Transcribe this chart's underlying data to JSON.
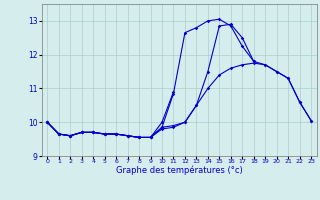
{
  "xlabel": "Graphe des températures (°c)",
  "background_color": "#d6eded",
  "grid_color": "#aacccc",
  "line_color": "#0000cc",
  "hours": [
    0,
    1,
    2,
    3,
    4,
    5,
    6,
    7,
    8,
    9,
    10,
    11,
    12,
    13,
    14,
    15,
    16,
    17,
    18,
    19,
    20,
    21,
    22,
    23
  ],
  "series": [
    {
      "name": "line_straight_long",
      "x": [
        0,
        1,
        2,
        3,
        4,
        5,
        6,
        7,
        8,
        9,
        10,
        11,
        12,
        13,
        14,
        15,
        16,
        17,
        18,
        19,
        20,
        21,
        22,
        23
      ],
      "y": [
        10.0,
        9.65,
        9.6,
        9.7,
        9.7,
        9.65,
        9.65,
        9.6,
        9.55,
        9.55,
        9.8,
        9.85,
        10.0,
        10.5,
        11.0,
        11.4,
        11.6,
        11.7,
        11.75,
        11.7,
        11.5,
        11.3,
        10.6,
        10.05
      ]
    },
    {
      "name": "line_curvy_peak",
      "x": [
        0,
        1,
        2,
        3,
        4,
        5,
        6,
        7,
        8,
        9,
        10,
        11,
        12,
        13,
        14,
        15,
        16,
        17,
        18,
        19,
        20,
        21,
        22,
        23
      ],
      "y": [
        10.0,
        9.65,
        9.6,
        9.7,
        9.7,
        9.65,
        9.65,
        9.6,
        9.55,
        9.55,
        9.85,
        10.85,
        12.65,
        12.8,
        13.0,
        13.05,
        12.85,
        12.25,
        11.8,
        11.7,
        11.5,
        11.3,
        10.6,
        10.05
      ]
    },
    {
      "name": "line_medium",
      "x": [
        0,
        1,
        2,
        3,
        4,
        5,
        6,
        7,
        8,
        9,
        10,
        11,
        12,
        13,
        14,
        15,
        16,
        17,
        18
      ],
      "y": [
        10.0,
        9.65,
        9.6,
        9.7,
        9.7,
        9.65,
        9.65,
        9.6,
        9.55,
        9.55,
        9.85,
        9.9,
        10.0,
        10.5,
        11.5,
        12.85,
        12.9,
        12.5,
        11.8
      ]
    },
    {
      "name": "line_short",
      "x": [
        0,
        1,
        2,
        3,
        4,
        5,
        6,
        7,
        8,
        9,
        10,
        11
      ],
      "y": [
        10.0,
        9.65,
        9.6,
        9.7,
        9.7,
        9.65,
        9.65,
        9.6,
        9.55,
        9.55,
        10.0,
        10.9
      ]
    }
  ],
  "ylim": [
    9.0,
    13.5
  ],
  "yticks": [
    9,
    10,
    11,
    12,
    13
  ],
  "xlim": [
    -0.5,
    23.5
  ]
}
